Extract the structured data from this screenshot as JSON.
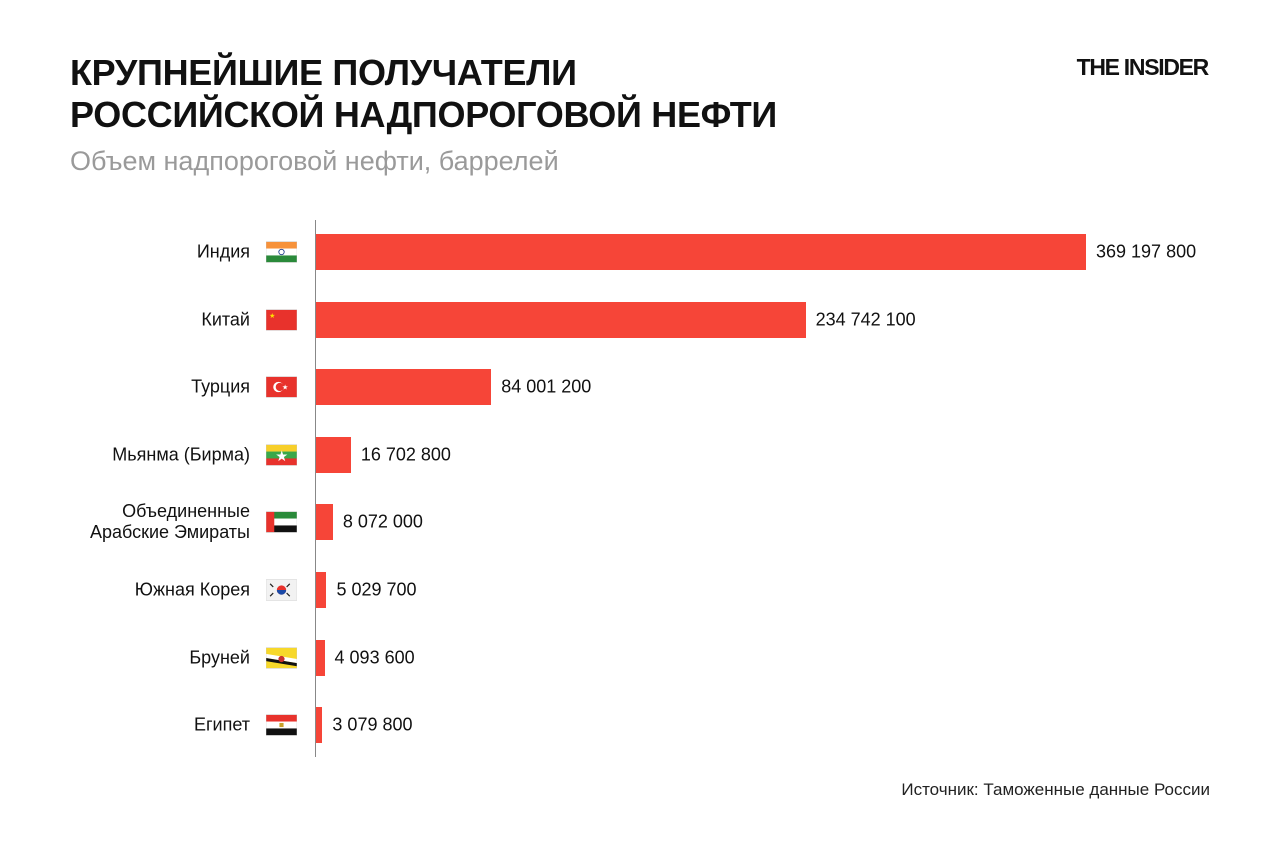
{
  "header": {
    "title": "КРУПНЕЙШИЕ ПОЛУЧАТЕЛИ\nРОССИЙСКОЙ НАДПОРОГОВОЙ НЕФТИ",
    "subtitle": "Объем надпороговой нефти, баррелей",
    "logo": "THE INSIDER"
  },
  "footer": {
    "source": "Источник: Таможенные данные России"
  },
  "colors": {
    "bar": "#f64538",
    "subtitle": "#9a9a9a"
  },
  "chart_data": {
    "type": "bar",
    "orientation": "horizontal",
    "title": "КРУПНЕЙШИЕ ПОЛУЧАТЕЛИ РОССИЙСКОЙ НАДПОРОГОВОЙ НЕФТИ",
    "subtitle": "Объем надпороговой нефти, баррелей",
    "categories": [
      "Индия",
      "Китай",
      "Турция",
      "Мьянма (Бирма)",
      "Объединенные\nАрабские Эмираты",
      "Южная Корея",
      "Бруней",
      "Египет"
    ],
    "flags": [
      "flag-india-icon",
      "flag-china-icon",
      "flag-turkey-icon",
      "flag-myanmar-icon",
      "flag-uae-icon",
      "flag-south-korea-icon",
      "flag-brunei-icon",
      "flag-egypt-icon"
    ],
    "values": [
      369197800,
      234742100,
      84001200,
      16702800,
      8072000,
      5029700,
      4093600,
      3079800
    ],
    "value_labels": [
      "369 197 800",
      "234 742 100",
      "84 001 200",
      "16 702 800",
      "8 072 000",
      "5 029 700",
      "4 093 600",
      "3 079 800"
    ],
    "xlim": [
      0,
      369197800
    ],
    "grid": false,
    "legend": "none"
  }
}
